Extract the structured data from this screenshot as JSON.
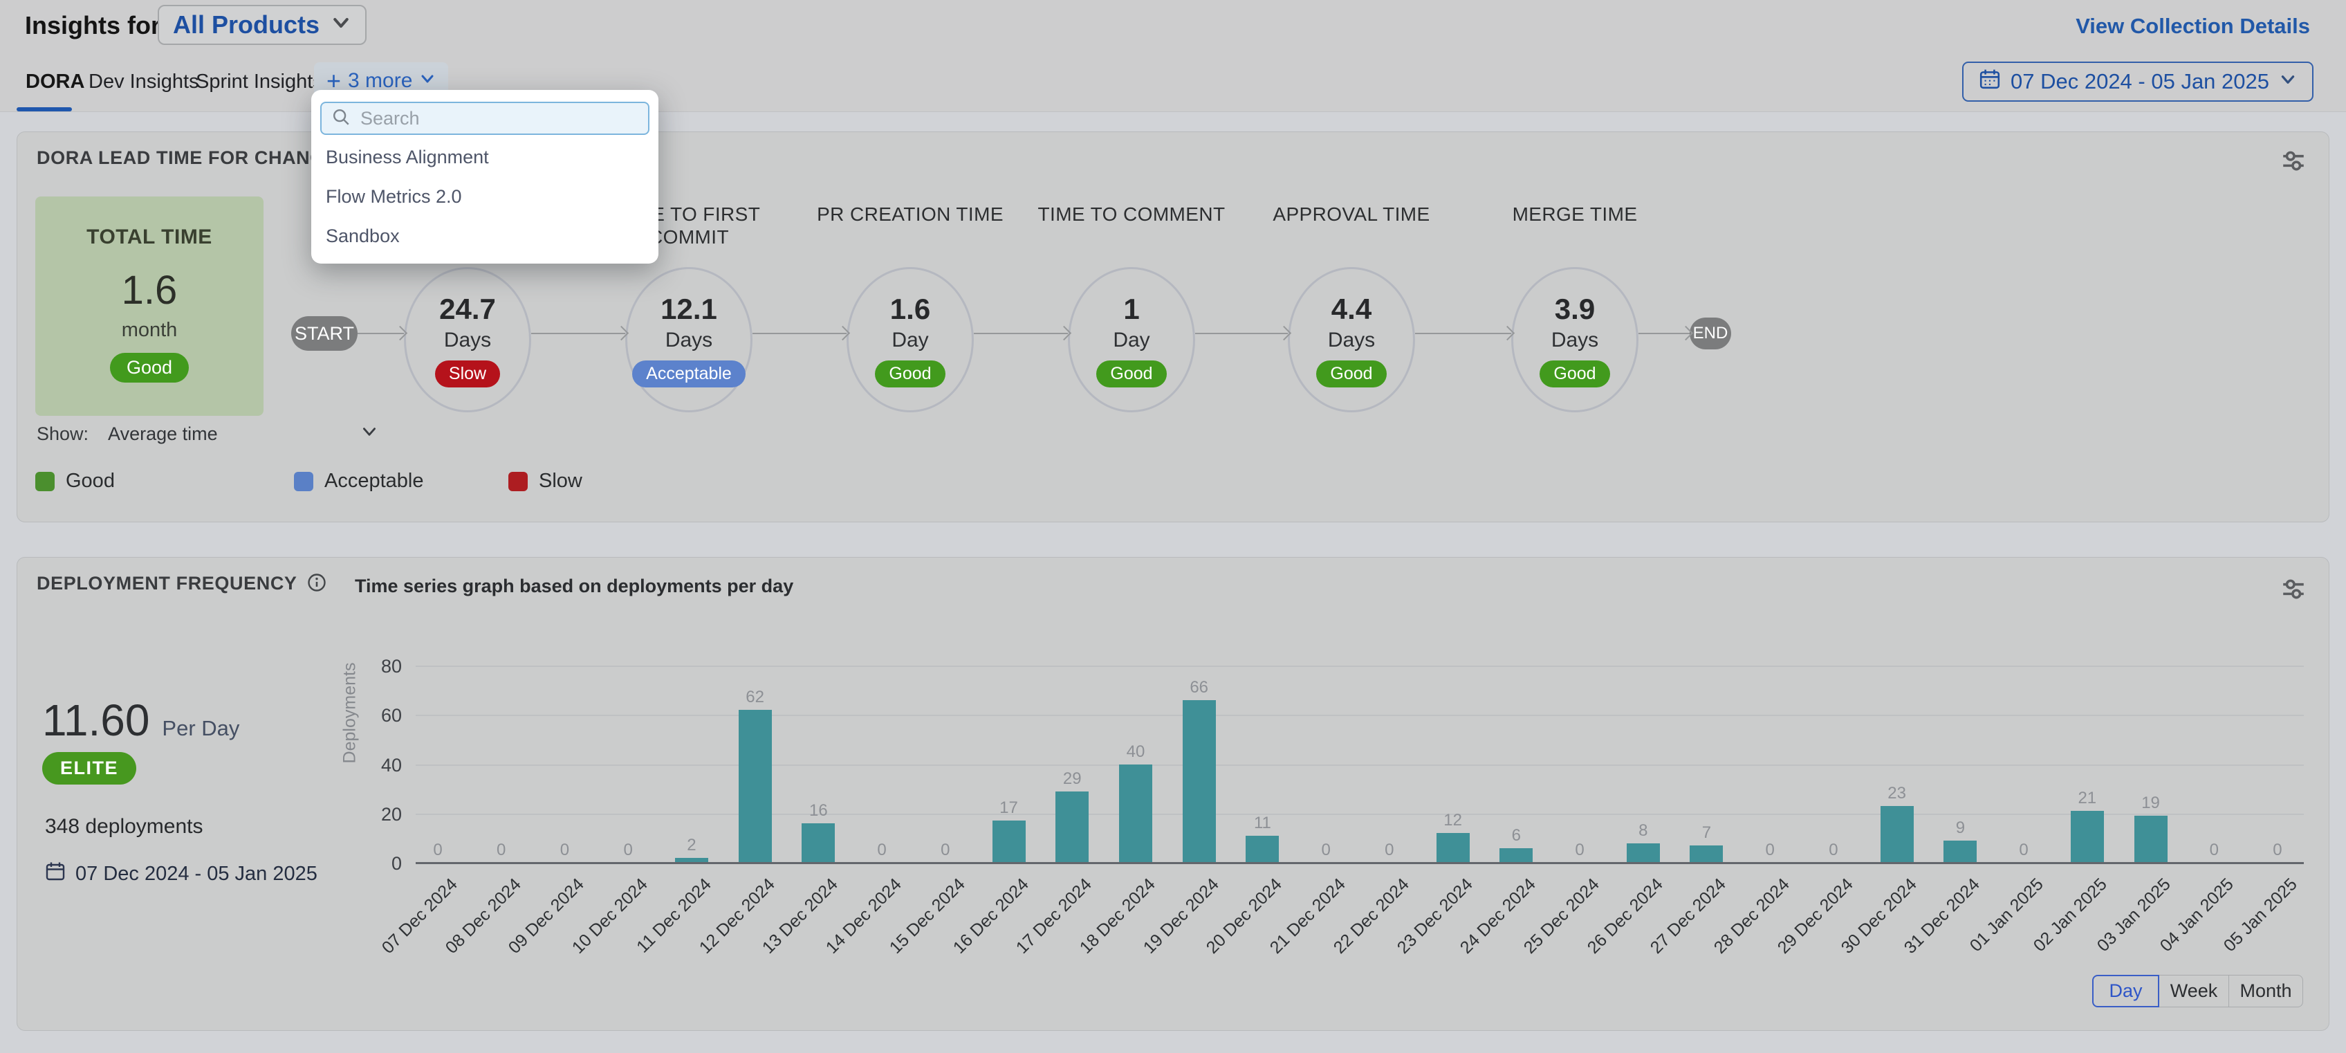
{
  "page": {
    "title_prefix": "Insights for",
    "collection_selector": "All Products",
    "view_collection_details": "View Collection Details"
  },
  "tabs": {
    "items": [
      {
        "label": "DORA",
        "active": true
      },
      {
        "label": "Dev Insights",
        "active": false
      },
      {
        "label": "Sprint Insights",
        "active": false
      }
    ],
    "more_plus": "+",
    "more_label": "3 more",
    "date_range": "07 Dec 2024 - 05 Jan 2025"
  },
  "more_dropdown": {
    "search_placeholder": "Search",
    "items": [
      "Business Alignment",
      "Flow Metrics 2.0",
      "Sandbox"
    ]
  },
  "lead_time_card": {
    "title": "DORA LEAD TIME FOR CHANGES REP",
    "total_box": {
      "label": "TOTAL TIME",
      "value": "1.6",
      "unit": "month",
      "badge": "Good"
    },
    "flow": {
      "start": "START",
      "end": "END",
      "stages": [
        {
          "label": "",
          "value": "24.7",
          "unit": "Days",
          "badge": "Slow"
        },
        {
          "label": "TIME TO FIRST COMMIT",
          "value": "12.1",
          "unit": "Days",
          "badge": "Acceptable"
        },
        {
          "label": "PR CREATION TIME",
          "value": "1.6",
          "unit": "Day",
          "badge": "Good"
        },
        {
          "label": "TIME TO COMMENT",
          "value": "1",
          "unit": "Day",
          "badge": "Good"
        },
        {
          "label": "APPROVAL TIME",
          "value": "4.4",
          "unit": "Days",
          "badge": "Good"
        },
        {
          "label": "MERGE TIME",
          "value": "3.9",
          "unit": "Days",
          "badge": "Good"
        }
      ]
    },
    "show_label": "Show:",
    "show_value": "Average time",
    "legend": [
      {
        "label": "Good",
        "color": "#4b8f2e"
      },
      {
        "label": "Acceptable",
        "color": "#5a80c6"
      },
      {
        "label": "Slow",
        "color": "#ad1d21"
      }
    ]
  },
  "deployment_card": {
    "title": "DEPLOYMENT FREQUENCY",
    "subtitle": "Time series graph based on deployments per day",
    "rate_value": "11.60",
    "rate_unit": "Per Day",
    "tier_badge": "ELITE",
    "total_deployments": "348 deployments",
    "date_range": "07 Dec 2024 - 05 Jan 2025",
    "granularity": {
      "options": [
        "Day",
        "Week",
        "Month"
      ],
      "active": "Day"
    }
  },
  "chart_data": {
    "type": "bar",
    "title": "Time series graph based on deployments per day",
    "xlabel": "",
    "ylabel": "Deployments",
    "x": [
      "07 Dec 2024",
      "08 Dec 2024",
      "09 Dec 2024",
      "10 Dec 2024",
      "11 Dec 2024",
      "12 Dec 2024",
      "13 Dec 2024",
      "14 Dec 2024",
      "15 Dec 2024",
      "16 Dec 2024",
      "17 Dec 2024",
      "18 Dec 2024",
      "19 Dec 2024",
      "20 Dec 2024",
      "21 Dec 2024",
      "22 Dec 2024",
      "23 Dec 2024",
      "24 Dec 2024",
      "25 Dec 2024",
      "26 Dec 2024",
      "27 Dec 2024",
      "28 Dec 2024",
      "29 Dec 2024",
      "30 Dec 2024",
      "31 Dec 2024",
      "01 Jan 2025",
      "02 Jan 2025",
      "03 Jan 2025",
      "04 Jan 2025",
      "05 Jan 2025"
    ],
    "values": [
      0,
      0,
      0,
      0,
      2,
      62,
      16,
      0,
      0,
      17,
      29,
      40,
      66,
      11,
      0,
      0,
      12,
      6,
      0,
      8,
      7,
      0,
      0,
      23,
      9,
      0,
      21,
      19,
      0,
      0
    ],
    "yticks": [
      0,
      20,
      40,
      60,
      80
    ],
    "ylim": [
      0,
      84
    ],
    "grid": true,
    "data_labels": true,
    "legend_position": "none",
    "bar_color": "#3f9097"
  },
  "colors": {
    "status": {
      "Good": "#429a1d",
      "Acceptable": "#5c82cc",
      "Slow": "#b5121b"
    },
    "accent_blue": "#1d4fa1",
    "elite_green": "#47981f"
  }
}
